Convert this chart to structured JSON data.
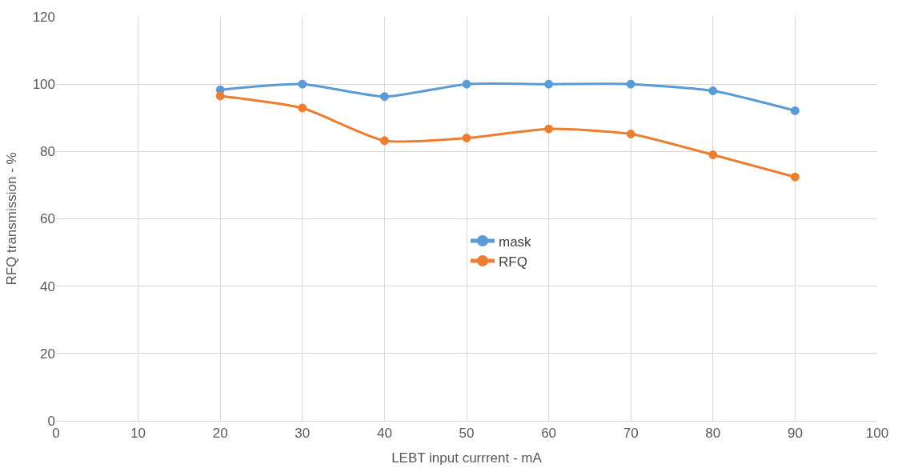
{
  "chart_data": {
    "type": "line",
    "xlabel": "LEBT input currrent - mA",
    "ylabel": "RFQ transmission - %",
    "x": [
      20,
      30,
      40,
      50,
      60,
      70,
      80,
      90
    ],
    "series": [
      {
        "name": "mask",
        "color": "#5b9bd5",
        "values": [
          98.3,
          100,
          96.3,
          100,
          100,
          100,
          98,
          92.1
        ]
      },
      {
        "name": "RFQ",
        "color": "#ed7d31",
        "values": [
          96.5,
          92.9,
          83.2,
          84,
          86.7,
          85.2,
          79,
          72.4
        ]
      }
    ],
    "xlim": [
      0,
      100
    ],
    "xticks": [
      0,
      10,
      20,
      30,
      40,
      50,
      60,
      70,
      80,
      90,
      100
    ],
    "ylim": [
      0,
      120
    ],
    "yticks": [
      0,
      20,
      40,
      60,
      80,
      100,
      120
    ],
    "grid": true,
    "legend": "center",
    "marker": "circle",
    "line_style": "solid"
  }
}
